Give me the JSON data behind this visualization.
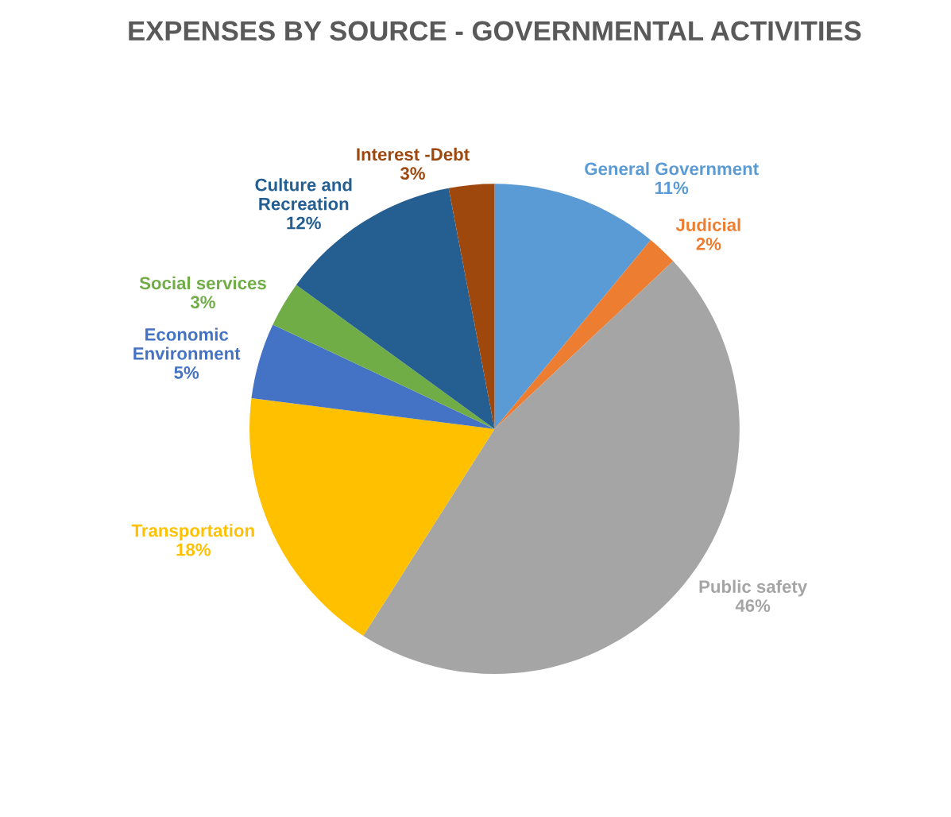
{
  "chart_data": {
    "type": "pie",
    "title": "EXPENSES BY SOURCE - GOVERNMENTAL ACTIVITIES",
    "categories": [
      "General Government",
      "Judicial",
      "Public safety",
      "Transportation",
      "Economic\nEnvironment",
      "Social services",
      "Culture and\nRecreation",
      "Interest -Debt"
    ],
    "values": [
      11,
      2,
      46,
      18,
      5,
      3,
      12,
      3
    ],
    "value_labels": [
      "11%",
      "2%",
      "46%",
      "18%",
      "5%",
      "3%",
      "12%",
      "3%"
    ],
    "colors": [
      "#5b9bd5",
      "#ed7d31",
      "#a5a5a5",
      "#ffc000",
      "#4472c4",
      "#70ad47",
      "#255e91",
      "#9e480e"
    ]
  }
}
